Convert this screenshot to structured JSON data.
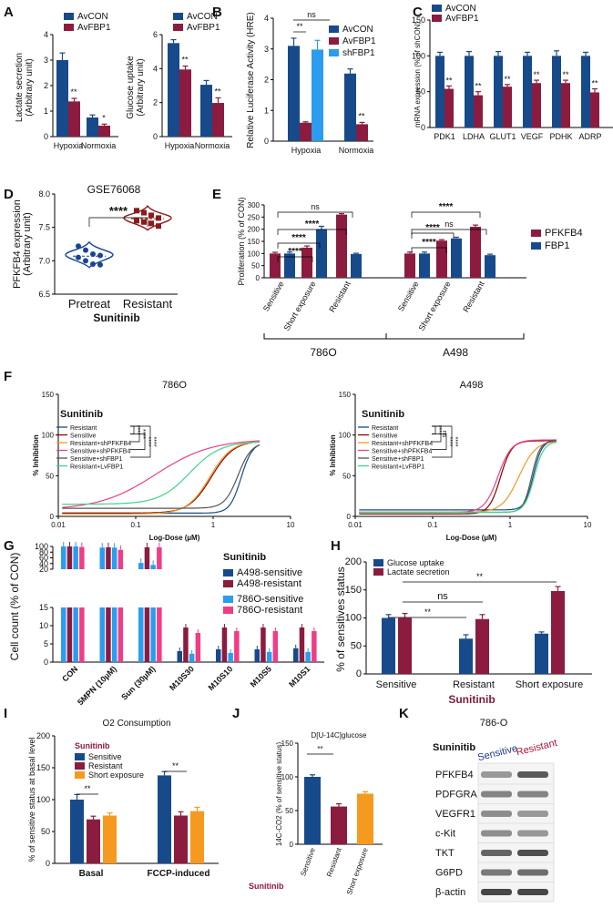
{
  "colors": {
    "navy": "#174a8b",
    "maroon": "#8b1c3f",
    "skyblue": "#2b9cf0",
    "orange": "#f59a1f",
    "pink": "#ef3e86",
    "violin": "#164596",
    "violin2": "#8d1a1a"
  },
  "panel_labels": [
    "A",
    "B",
    "C",
    "D",
    "E",
    "F",
    "G",
    "H",
    "I",
    "J",
    "K"
  ],
  "chart_data": [
    {
      "id": "A1",
      "type": "bar",
      "ylabel": "Lactate secretion (Arbitrary unit)",
      "ylim": [
        0,
        4
      ],
      "yticks": [
        "0",
        "1",
        "2",
        "3",
        "4"
      ],
      "categories": [
        "Hypoxia",
        "Normoxia"
      ],
      "series": [
        {
          "name": "AvCON",
          "values": [
            3.0,
            0.75
          ],
          "err": [
            0.28,
            0.1
          ]
        },
        {
          "name": "AvFBP1",
          "values": [
            1.38,
            0.43
          ],
          "err": [
            0.12,
            0.06
          ]
        }
      ],
      "sig": [
        "**",
        "*"
      ]
    },
    {
      "id": "A2",
      "type": "bar",
      "ylabel": "Glucose uptake (Arbitrary unit)",
      "ylim": [
        0,
        6
      ],
      "yticks": [
        "0",
        "2",
        "4",
        "6"
      ],
      "categories": [
        "Hypoxia",
        "Normoxia"
      ],
      "series": [
        {
          "name": "AvCON",
          "values": [
            5.5,
            3.05
          ],
          "err": [
            0.2,
            0.25
          ]
        },
        {
          "name": "AvFBP1",
          "values": [
            3.95,
            1.98
          ],
          "err": [
            0.2,
            0.3
          ]
        }
      ],
      "sig": [
        "**",
        "**"
      ]
    },
    {
      "id": "B",
      "type": "bar",
      "ylabel": "Relative Luciferase Activity (HRE)",
      "ylim": [
        0,
        4
      ],
      "yticks": [
        "0",
        "1",
        "2",
        "3",
        "4"
      ],
      "categories": [
        "Hypoxia",
        "Normoxia"
      ],
      "series": [
        {
          "name": "AvCON",
          "values": [
            3.1,
            2.2
          ],
          "err": [
            0.25,
            0.15
          ]
        },
        {
          "name": "AvFBP1",
          "values": [
            0.6,
            0.55
          ],
          "err": [
            0.03,
            0.06
          ]
        },
        {
          "name": "shFBP1",
          "values": [
            2.98,
            null
          ],
          "err": [
            0.3,
            null
          ]
        }
      ],
      "sig": [
        "**",
        "ns",
        "**"
      ]
    },
    {
      "id": "C",
      "type": "bar",
      "ylabel": "mRNA expression (% of shCON)",
      "ylim": [
        0,
        150
      ],
      "yticks": [
        "0",
        "50",
        "100",
        "150"
      ],
      "categories": [
        "PDK1",
        "LDHA",
        "GLUT1",
        "VEGF",
        "PDHK",
        "ADRP"
      ],
      "series": [
        {
          "name": "AvCON",
          "values": [
            100,
            100,
            100,
            100,
            100,
            100
          ],
          "err": [
            5,
            6,
            6,
            5,
            7,
            5
          ]
        },
        {
          "name": "AvFBP1",
          "values": [
            54,
            45,
            57,
            62,
            62,
            49
          ],
          "err": [
            4,
            5,
            3,
            4,
            4,
            5
          ]
        }
      ],
      "sig": [
        "**",
        "**",
        "**",
        "**",
        "**",
        "**"
      ]
    },
    {
      "id": "D",
      "type": "violin",
      "title": "GSE76068",
      "ylabel": "PFKFB4 expression (Arbitrary unit)",
      "xlabel": "Sunitinib",
      "ylim": [
        6.5,
        8.0
      ],
      "yticks": [
        "6.5",
        "7.0",
        "7.5",
        "8.0"
      ],
      "categories": [
        "Pretreat",
        "Resistant"
      ],
      "points": [
        [
          7.22,
          7.16,
          7.1,
          7.08,
          7.05,
          7.0,
          6.95,
          6.94
        ],
        [
          7.75,
          7.72,
          7.68,
          7.64,
          7.6,
          7.58,
          7.56,
          7.52
        ]
      ],
      "sig": "****"
    },
    {
      "id": "E",
      "type": "bar",
      "ylabel": "Proliferation (% of CON)",
      "ylim": [
        0,
        300
      ],
      "yticks": [
        "0",
        "50",
        "100",
        "150",
        "200",
        "250",
        "300"
      ],
      "categories": [
        "Sensitive",
        "Short exposure",
        "Resistant",
        "Sensitive",
        "Short exposure",
        "Resistant"
      ],
      "groups": [
        "786O",
        "A498"
      ],
      "series": [
        {
          "name": "PFKFB4",
          "values": [
            100,
            124,
            260,
            100,
            153,
            210
          ],
          "err": [
            5,
            7,
            4,
            6,
            4,
            7
          ]
        },
        {
          "name": "FBP1",
          "values": [
            100,
            200,
            98,
            100,
            162,
            93
          ],
          "err": [
            6,
            12,
            3,
            6,
            5,
            4
          ]
        }
      ],
      "sig": [
        "****",
        "****",
        "****",
        "ns",
        "****",
        "****",
        "****",
        "ns"
      ]
    },
    {
      "id": "F1",
      "type": "line",
      "title": "786O",
      "drug": "Sunitinib",
      "xlabel": "Log-Dose (µM)",
      "ylabel": "% Inhibition",
      "xticks": [
        "0.01",
        "0.1",
        "1",
        "10"
      ],
      "ylim": [
        0,
        150
      ],
      "yticks": [
        "0",
        "50",
        "100",
        "150"
      ],
      "series": [
        {
          "name": "Resistant",
          "ec50": 2.3,
          "bottom": 4,
          "top": 91,
          "hill": 6
        },
        {
          "name": "Sensitive",
          "ec50": 0.95,
          "bottom": 4,
          "top": 93,
          "hill": 3
        },
        {
          "name": "Resistant+shPFKFB4",
          "ec50": 0.9,
          "bottom": 3,
          "top": 93,
          "hill": 3
        },
        {
          "name": "Sensitive+shPFKFB4",
          "ec50": 0.18,
          "bottom": 8,
          "top": 95,
          "hill": 1.2
        },
        {
          "name": "Sensitive+shFBP1",
          "ec50": 2.1,
          "bottom": 10,
          "top": 91,
          "hill": 5
        },
        {
          "name": "Resistant+LvFBP1",
          "ec50": 0.5,
          "bottom": 15,
          "top": 92,
          "hill": 2.2
        }
      ],
      "sig": [
        "****",
        "****",
        "****",
        "****"
      ]
    },
    {
      "id": "F2",
      "type": "line",
      "title": "A498",
      "drug": "Sunitinib",
      "xlabel": "Log-Dose (µM)",
      "ylabel": "% Inhibition",
      "xticks": [
        "0.01",
        "0.1",
        "1",
        "10"
      ],
      "ylim": [
        0,
        150
      ],
      "yticks": [
        "0",
        "50",
        "100",
        "150"
      ],
      "series": [
        {
          "name": "Resistant",
          "ec50": 2.0,
          "bottom": 8,
          "top": 93,
          "hill": 8
        },
        {
          "name": "Sensitive",
          "ec50": 0.75,
          "bottom": 3,
          "top": 93,
          "hill": 6
        },
        {
          "name": "Resistant+shPFKFB4",
          "ec50": 1.3,
          "bottom": 5,
          "top": 93,
          "hill": 4
        },
        {
          "name": "Sensitive+shPFKFB4",
          "ec50": 0.7,
          "bottom": 5,
          "top": 94,
          "hill": 5
        },
        {
          "name": "Sensitive+shFBP1",
          "ec50": 1.9,
          "bottom": 5,
          "top": 93,
          "hill": 8
        },
        {
          "name": "Resistant+LvFBP1",
          "ec50": 2.05,
          "bottom": 5,
          "top": 92,
          "hill": 7
        }
      ],
      "sig": [
        "****",
        "ns",
        "****",
        "****"
      ]
    },
    {
      "id": "G",
      "type": "bar",
      "ylabel": "Cell count (% of CON)",
      "yticks": [
        "0",
        "5",
        "10",
        "15",
        "20",
        "40",
        "60",
        "80",
        "100"
      ],
      "categories": [
        "CON",
        "5MPN (10µM)",
        "Sun (30µM)",
        "M10S30",
        "M10S10",
        "M10S5",
        "M10S1"
      ],
      "drug": "Sunitinib",
      "series": [
        {
          "name": "A498-sensitive",
          "values": [
            100,
            96,
            42,
            3.0,
            3.5,
            3.5,
            3.8
          ]
        },
        {
          "name": "A498-resistant",
          "values": [
            100,
            97,
            97,
            9.5,
            9.5,
            9.5,
            9.5
          ]
        },
        {
          "name": "786O-sensitive",
          "values": [
            100,
            96,
            35,
            2.3,
            2.5,
            2.8,
            2.8
          ]
        },
        {
          "name": "786O-resistant",
          "values": [
            98,
            88,
            97,
            8,
            8.5,
            8.5,
            8.5
          ]
        }
      ]
    },
    {
      "id": "H",
      "type": "bar",
      "ylabel": "% of sensitives status",
      "xlabel": "Sunitinib",
      "ylim": [
        0,
        200
      ],
      "yticks": [
        "0",
        "50",
        "100",
        "150",
        "200"
      ],
      "categories": [
        "Sensitive",
        "Resistant",
        "Short exposure"
      ],
      "series": [
        {
          "name": "Glucose uptake",
          "values": [
            100,
            63,
            72
          ],
          "err": [
            6,
            7,
            3
          ]
        },
        {
          "name": "Lactate secretion",
          "values": [
            100,
            98,
            148
          ],
          "err": [
            8,
            8,
            8
          ]
        }
      ],
      "sig": [
        "**",
        "ns",
        "**"
      ]
    },
    {
      "id": "I",
      "type": "bar",
      "title": "O2 Consumption",
      "ylabel": "% of sensitive status at basal level",
      "ylim": [
        0,
        200
      ],
      "yticks": [
        "0",
        "50",
        "100",
        "150",
        "200"
      ],
      "drug": "Sunitinib",
      "categories": [
        "Basal",
        "FCCP-induced"
      ],
      "series": [
        {
          "name": "Sensitive",
          "values": [
            100,
            138
          ],
          "err": [
            8,
            6
          ]
        },
        {
          "name": "Resistant",
          "values": [
            69,
            75
          ],
          "err": [
            5,
            6
          ]
        },
        {
          "name": "Short exposure",
          "values": [
            75,
            82
          ],
          "err": [
            4,
            6
          ]
        }
      ],
      "sig": [
        "**",
        "**"
      ]
    },
    {
      "id": "J",
      "type": "bar",
      "title": "D[U-14C]glucose",
      "ylabel": "14C-CO2 (% of sensitive status)",
      "ylim": [
        0,
        150
      ],
      "yticks": [
        "0",
        "50",
        "100",
        "150"
      ],
      "drug": "Sunitinib",
      "categories": [
        "Sensitive",
        "Resistant",
        "Short exposure"
      ],
      "values": [
        100,
        56,
        75
      ],
      "err": [
        3,
        4,
        3
      ],
      "sig": [
        "**"
      ]
    }
  ],
  "blot": {
    "title": "786-O",
    "drug": "Suninitib",
    "lanes": [
      "Sensitive",
      "Resistant"
    ],
    "proteins": [
      "PFKFB4",
      "PDFGRA",
      "VEGFR1",
      "c-Kit",
      "TKT",
      "G6PD",
      "β-actin"
    ]
  }
}
